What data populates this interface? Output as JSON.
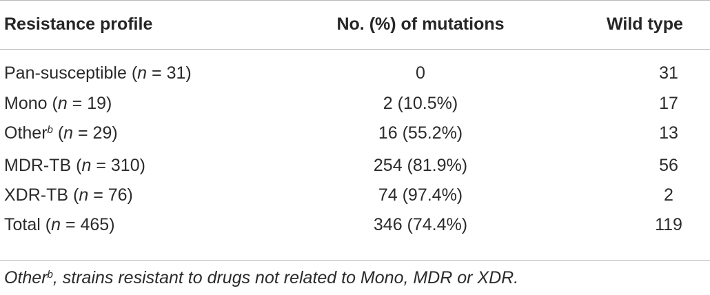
{
  "table": {
    "headers": {
      "profile": "Resistance profile",
      "mutations": "No. (%) of mutations",
      "wild_type": "Wild type"
    },
    "rows": [
      {
        "label": "Pan-susceptible",
        "sup": "",
        "n": "n",
        "n_value": " = 31)",
        "mutations": "0",
        "wild_type": "31"
      },
      {
        "label": "Mono",
        "sup": "",
        "n": "n",
        "n_value": " = 19)",
        "mutations": "2 (10.5%)",
        "wild_type": "17"
      },
      {
        "label": "Other",
        "sup": "b",
        "n": "n",
        "n_value": " = 29)",
        "mutations": "16 (55.2%)",
        "wild_type": "13"
      },
      {
        "label": "MDR-TB",
        "sup": "",
        "n": "n",
        "n_value": " = 310)",
        "mutations": "254 (81.9%)",
        "wild_type": "56"
      },
      {
        "label": "XDR-TB",
        "sup": "",
        "n": "n",
        "n_value": " = 76)",
        "mutations": "74 (97.4%)",
        "wild_type": "2"
      },
      {
        "label": "Total",
        "sup": "",
        "n": "n",
        "n_value": " = 465)",
        "mutations": "346 (74.4%)",
        "wild_type": "119"
      }
    ]
  },
  "footnote": {
    "label": "Other",
    "sup": "b",
    "text": ", strains resistant to drugs not related to Mono, MDR or XDR."
  }
}
